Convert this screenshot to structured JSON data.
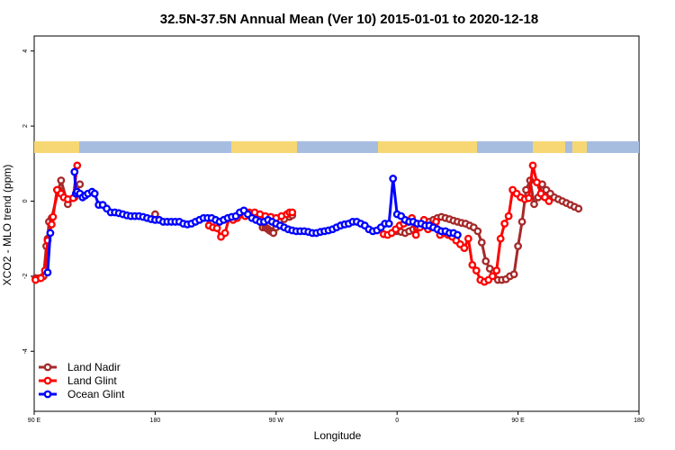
{
  "chart_data": {
    "type": "line",
    "title": "32.5N-37.5N Annual Mean (Ver 10)   2015-01-01 to 2020-12-18",
    "xlabel": "Longitude",
    "ylabel": "XCO2 - MLO trend (ppm)",
    "xlim": [
      90,
      540
    ],
    "ylim": [
      -5.6,
      4.4
    ],
    "x_ticks": [
      {
        "value": 90,
        "label": "90 E"
      },
      {
        "value": 180,
        "label": "180"
      },
      {
        "value": 270,
        "label": "90 W"
      },
      {
        "value": 360,
        "label": "0"
      },
      {
        "value": 450,
        "label": "90 E"
      },
      {
        "value": 540,
        "label": "180"
      }
    ],
    "y_ticks": [
      -4,
      -2,
      0,
      2,
      4
    ],
    "grid": false,
    "legend_position": "bottom-left",
    "land_ocean_strip_colors": {
      "land": "#f7d774",
      "ocean": "#a7bde0"
    },
    "series": [
      {
        "name": "Land Nadir",
        "color": "#a52a2a",
        "x": [
          91,
          94,
          97,
          99,
          100,
          101,
          103,
          108,
          110,
          115,
          120,
          124,
          180,
          260,
          262,
          263,
          264,
          265,
          266,
          267,
          268,
          270,
          273,
          276,
          280,
          282,
          360,
          363,
          366,
          369,
          372,
          375,
          378,
          381,
          384,
          387,
          390,
          393,
          396,
          399,
          402,
          405,
          408,
          411,
          414,
          417,
          420,
          423,
          426,
          429,
          432,
          435,
          438,
          441,
          444,
          447,
          450,
          453,
          456,
          459,
          462,
          465,
          468,
          471,
          474,
          477,
          480,
          483,
          486,
          489,
          492,
          495
        ],
        "y": [
          -2.05,
          -2.05,
          -2.0,
          -1.2,
          -1.0,
          -0.55,
          -0.45,
          0.3,
          0.55,
          -0.08,
          0.1,
          0.45,
          -0.35,
          -0.7,
          -0.7,
          -0.72,
          -0.75,
          -0.78,
          -0.8,
          -0.82,
          -0.85,
          -0.7,
          -0.55,
          -0.48,
          -0.42,
          -0.38,
          -0.8,
          -0.82,
          -0.85,
          -0.8,
          -0.75,
          -0.7,
          -0.65,
          -0.6,
          -0.55,
          -0.5,
          -0.45,
          -0.42,
          -0.45,
          -0.48,
          -0.52,
          -0.55,
          -0.58,
          -0.6,
          -0.65,
          -0.7,
          -0.8,
          -1.1,
          -1.6,
          -1.8,
          -1.9,
          -2.1,
          -2.1,
          -2.08,
          -2.0,
          -1.95,
          -1.2,
          -0.55,
          0.3,
          0.55,
          -0.08,
          0.1,
          0.45,
          0.3,
          0.2,
          0.1,
          0.05,
          0.0,
          -0.05,
          -0.1,
          -0.15,
          -0.2
        ]
      },
      {
        "name": "Land Glint",
        "color": "#ff0000",
        "x": [
          91,
          95,
          98,
          100,
          103,
          104,
          107,
          110,
          112,
          115,
          119,
          122,
          220,
          223,
          226,
          229,
          232,
          235,
          238,
          241,
          244,
          247,
          250,
          254,
          258,
          262,
          266,
          270,
          274,
          278,
          280,
          282,
          350,
          353,
          356,
          359,
          362,
          365,
          368,
          371,
          374,
          377,
          380,
          383,
          386,
          389,
          392,
          395,
          398,
          401,
          404,
          407,
          410,
          413,
          416,
          419,
          422,
          425,
          428,
          431,
          434,
          437,
          440,
          443,
          446,
          449,
          452,
          455,
          458,
          461,
          464,
          467,
          470,
          473
        ],
        "y": [
          -2.1,
          -2.05,
          -1.85,
          -1.05,
          -0.62,
          -0.42,
          0.3,
          0.2,
          0.1,
          0.05,
          0.08,
          0.95,
          -0.65,
          -0.7,
          -0.72,
          -0.95,
          -0.85,
          -0.45,
          -0.5,
          -0.45,
          -0.35,
          -0.4,
          -0.3,
          -0.3,
          -0.35,
          -0.4,
          -0.42,
          -0.45,
          -0.4,
          -0.35,
          -0.3,
          -0.3,
          -0.88,
          -0.9,
          -0.85,
          -0.75,
          -0.65,
          -0.6,
          -0.55,
          -0.45,
          -0.9,
          -0.7,
          -0.5,
          -0.75,
          -0.7,
          -0.55,
          -0.9,
          -0.85,
          -0.9,
          -0.95,
          -1.05,
          -1.15,
          -1.25,
          -1.0,
          -1.7,
          -1.85,
          -2.1,
          -2.15,
          -2.1,
          -2.0,
          -1.85,
          -1.0,
          -0.6,
          -0.4,
          0.3,
          0.2,
          0.1,
          0.05,
          0.08,
          0.95,
          0.5,
          0.2,
          0.1,
          0.0
        ]
      },
      {
        "name": "Ocean Glint",
        "color": "#0000ff",
        "x": [
          100,
          102,
          120,
          121,
          122,
          124,
          126,
          128,
          130,
          133,
          135,
          138,
          141,
          144,
          147,
          150,
          153,
          156,
          159,
          162,
          165,
          168,
          171,
          174,
          177,
          180,
          183,
          186,
          189,
          192,
          195,
          198,
          201,
          204,
          207,
          210,
          213,
          216,
          219,
          222,
          225,
          228,
          231,
          234,
          237,
          240,
          243,
          246,
          249,
          252,
          255,
          258,
          261,
          264,
          267,
          270,
          273,
          276,
          279,
          282,
          285,
          288,
          291,
          294,
          297,
          300,
          303,
          306,
          309,
          312,
          315,
          318,
          321,
          324,
          327,
          330,
          333,
          336,
          339,
          342,
          345,
          348,
          351,
          354,
          357,
          360,
          363,
          366,
          369,
          372,
          375,
          378,
          381,
          384,
          387,
          390,
          393,
          396,
          399,
          402,
          405
        ],
        "y": [
          -1.9,
          -0.85,
          0.78,
          0.2,
          0.25,
          0.2,
          0.1,
          0.15,
          0.2,
          0.25,
          0.2,
          -0.1,
          -0.1,
          -0.2,
          -0.3,
          -0.3,
          -0.32,
          -0.35,
          -0.38,
          -0.4,
          -0.4,
          -0.4,
          -0.42,
          -0.45,
          -0.48,
          -0.5,
          -0.5,
          -0.55,
          -0.55,
          -0.55,
          -0.55,
          -0.55,
          -0.6,
          -0.62,
          -0.6,
          -0.55,
          -0.5,
          -0.45,
          -0.45,
          -0.45,
          -0.5,
          -0.55,
          -0.5,
          -0.45,
          -0.42,
          -0.4,
          -0.3,
          -0.25,
          -0.35,
          -0.45,
          -0.5,
          -0.55,
          -0.55,
          -0.5,
          -0.55,
          -0.6,
          -0.65,
          -0.7,
          -0.75,
          -0.78,
          -0.8,
          -0.8,
          -0.8,
          -0.82,
          -0.85,
          -0.85,
          -0.82,
          -0.8,
          -0.78,
          -0.75,
          -0.7,
          -0.65,
          -0.62,
          -0.6,
          -0.55,
          -0.55,
          -0.6,
          -0.65,
          -0.75,
          -0.8,
          -0.78,
          -0.7,
          -0.6,
          -0.6,
          0.6,
          -0.35,
          -0.4,
          -0.5,
          -0.55,
          -0.55,
          -0.6,
          -0.6,
          -0.65,
          -0.65,
          -0.7,
          -0.75,
          -0.8,
          -0.8,
          -0.85,
          -0.85,
          -0.9
        ]
      }
    ]
  }
}
